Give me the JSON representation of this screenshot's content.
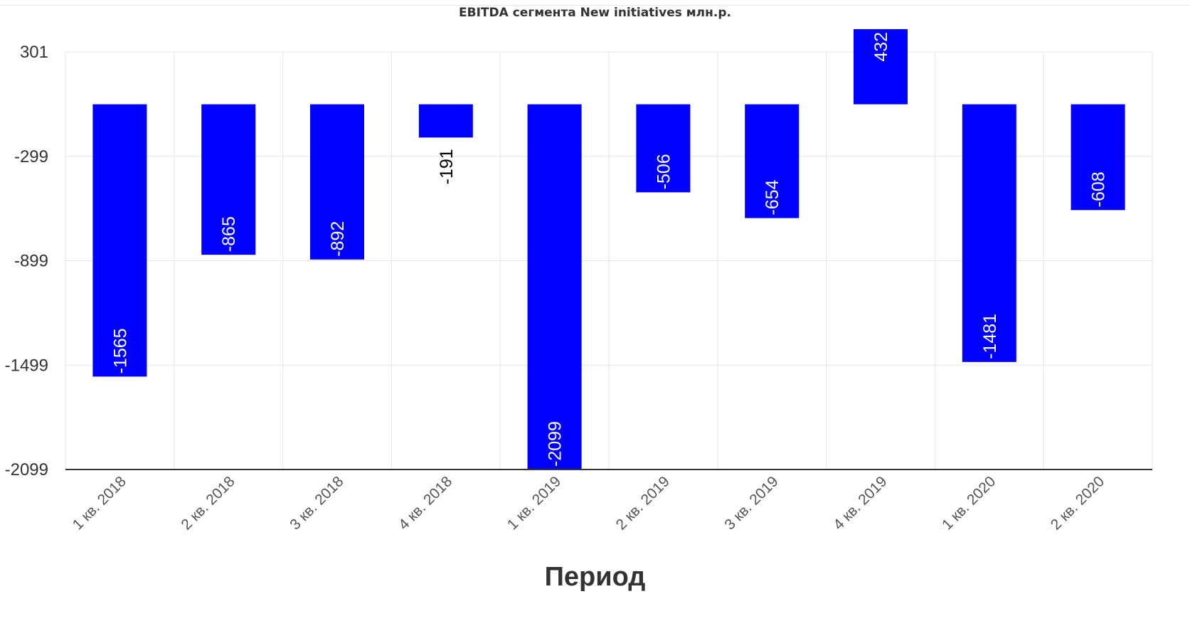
{
  "chart_data": {
    "type": "bar",
    "title": "EBITDA сегмента New initiatives млн.р.",
    "xlabel": "Период",
    "ylabel": "",
    "categories": [
      "1 кв. 2018",
      "2 кв. 2018",
      "3 кв. 2018",
      "4 кв. 2018",
      "1 кв. 2019",
      "2 кв. 2019",
      "3 кв. 2019",
      "4 кв. 2019",
      "1 кв. 2020",
      "2 кв. 2020"
    ],
    "values": [
      -1565,
      -865,
      -892,
      -191,
      -2099,
      -506,
      -654,
      432,
      -1481,
      -608
    ],
    "value_labels": [
      "-1565",
      "-865",
      "-892",
      "-191",
      "-2099",
      "-506",
      "-654",
      "432",
      "-1481",
      "-608"
    ],
    "ylim": [
      -2099,
      301
    ],
    "yticks": [
      301,
      -299,
      -899,
      -1499,
      -2099
    ],
    "ytick_labels": [
      "301",
      "-299",
      "-899",
      "-1499",
      "-2099"
    ],
    "grid": true,
    "legend": "none",
    "colors": {
      "bar": "#0000ff",
      "grid": "#e6e6e6",
      "axis": "#333333",
      "text": "#333333"
    }
  }
}
